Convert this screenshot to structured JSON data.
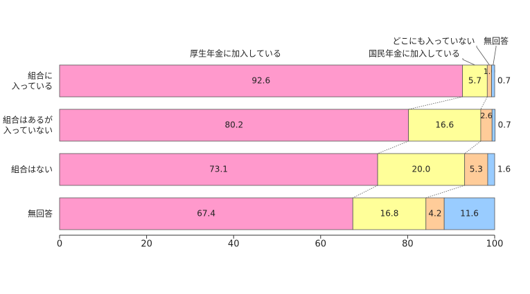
{
  "chart_data": {
    "type": "stacked-barh",
    "categories": [
      "組合に\n入っている",
      "組合はあるが\n入っていない",
      "組合はない",
      "無回答"
    ],
    "series": [
      {
        "name": "厚生年金に加入している",
        "color": "#ff99cc",
        "values": [
          92.6,
          80.2,
          73.1,
          67.4
        ],
        "value_labels": [
          "92.6",
          "80.2",
          "73.1",
          "67.4"
        ]
      },
      {
        "name": "国民年金に加入している",
        "color": "#ffff99",
        "values": [
          5.7,
          16.6,
          20.0,
          16.8
        ],
        "value_labels": [
          "5.7",
          "16.6",
          "20.0",
          "16.8"
        ]
      },
      {
        "name": "どこにも入っていない",
        "color": "#ffcc99",
        "values": [
          1.0,
          2.6,
          5.3,
          4.2
        ],
        "value_labels": [
          "1.0",
          "2.6",
          "5.3",
          "4.2"
        ]
      },
      {
        "name": "無回答",
        "color": "#99ccff",
        "values": [
          0.7,
          0.7,
          1.6,
          11.6
        ],
        "value_labels": [
          "0.7",
          "0.7",
          "1.6",
          "11.6"
        ]
      }
    ],
    "xlim": [
      0,
      100
    ],
    "xticks": [
      0,
      20,
      40,
      60,
      80,
      100
    ]
  }
}
